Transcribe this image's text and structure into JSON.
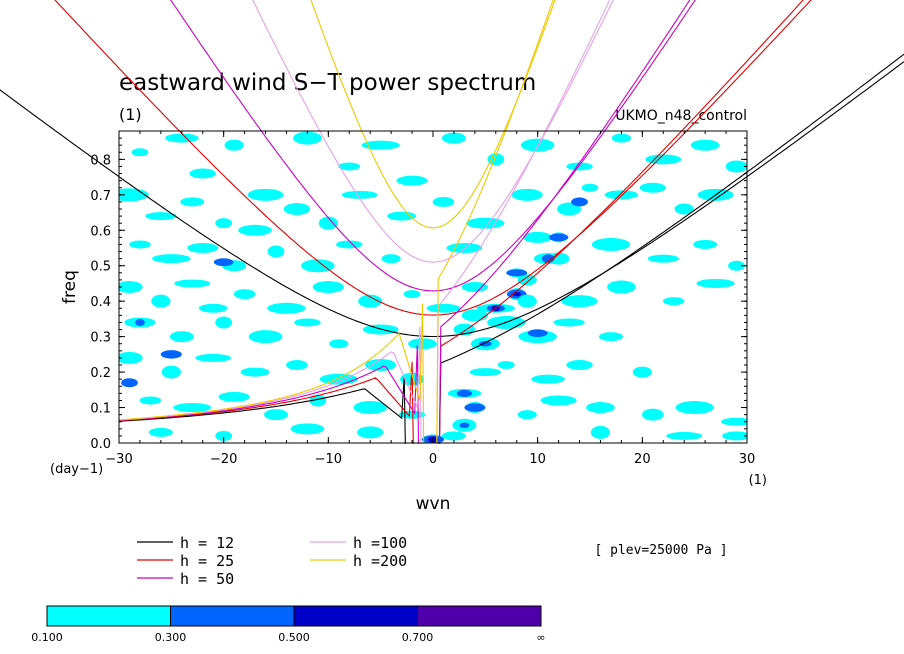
{
  "chart_data": {
    "type": "contour",
    "title": "eastward wind S−T power spectrum",
    "panel_label": "(1)",
    "model_label": "UKMO_n48_control",
    "xlabel": "wvn",
    "ylabel": "freq",
    "x_unit": "(1)",
    "y_unit": "(day−1)",
    "plev_label": "[ plev=25000 Pa ]",
    "xlim": [
      -30,
      30
    ],
    "ylim": [
      0,
      0.88
    ],
    "x_ticks": [
      -30,
      -20,
      -10,
      0,
      10,
      20,
      30
    ],
    "y_ticks": [
      0.0,
      0.1,
      0.2,
      0.3,
      0.4,
      0.5,
      0.6,
      0.7,
      0.8
    ],
    "x_tick_labels": [
      "−30",
      "−20",
      "−10",
      "0",
      "10",
      "20",
      "30"
    ],
    "y_tick_labels": [
      "0.0",
      "0.1",
      "0.2",
      "0.3",
      "0.4",
      "0.5",
      "0.6",
      "0.7",
      "0.8"
    ],
    "grid": false,
    "curves": [
      {
        "name": "h = 12",
        "h": 12,
        "color": "#000000"
      },
      {
        "name": "h = 25",
        "h": 25,
        "color": "#e00000"
      },
      {
        "name": "h = 50",
        "h": 50,
        "color": "#c800c8"
      },
      {
        "name": "h =100",
        "h": 100,
        "color": "#e6a0e6"
      },
      {
        "name": "h =200",
        "h": 200,
        "color": "#f0c800"
      }
    ],
    "levels": [
      "0.100",
      "0.300",
      "0.500",
      "0.700",
      "∞"
    ],
    "level_colors": [
      "#00ffff",
      "#0064ff",
      "#0000c8",
      "#5000aa"
    ],
    "blobs": [
      {
        "x": -28,
        "y": 0.82,
        "l": 0
      },
      {
        "x": -24,
        "y": 0.86,
        "l": 0
      },
      {
        "x": -22,
        "y": 0.76,
        "l": 0
      },
      {
        "x": -19,
        "y": 0.84,
        "l": 0
      },
      {
        "x": -16,
        "y": 0.7,
        "l": 0
      },
      {
        "x": -12,
        "y": 0.86,
        "l": 0
      },
      {
        "x": -8,
        "y": 0.78,
        "l": 0
      },
      {
        "x": -5,
        "y": 0.84,
        "l": 0
      },
      {
        "x": -2,
        "y": 0.74,
        "l": 0
      },
      {
        "x": 2,
        "y": 0.86,
        "l": 0
      },
      {
        "x": 6,
        "y": 0.8,
        "l": 0
      },
      {
        "x": 10,
        "y": 0.84,
        "l": 0
      },
      {
        "x": 14,
        "y": 0.78,
        "l": 0
      },
      {
        "x": 18,
        "y": 0.86,
        "l": 0
      },
      {
        "x": 22,
        "y": 0.8,
        "l": 0
      },
      {
        "x": 26,
        "y": 0.84,
        "l": 0
      },
      {
        "x": 29,
        "y": 0.78,
        "l": 0
      },
      {
        "x": -29,
        "y": 0.7,
        "l": 0
      },
      {
        "x": -26,
        "y": 0.64,
        "l": 0
      },
      {
        "x": -23,
        "y": 0.68,
        "l": 0
      },
      {
        "x": -20,
        "y": 0.62,
        "l": 0
      },
      {
        "x": -17,
        "y": 0.6,
        "l": 0
      },
      {
        "x": -13,
        "y": 0.66,
        "l": 0
      },
      {
        "x": -10,
        "y": 0.62,
        "l": 0
      },
      {
        "x": -7,
        "y": 0.7,
        "l": 0
      },
      {
        "x": -3,
        "y": 0.64,
        "l": 0
      },
      {
        "x": 1,
        "y": 0.68,
        "l": 0
      },
      {
        "x": 5,
        "y": 0.62,
        "l": 0
      },
      {
        "x": 9,
        "y": 0.7,
        "l": 0
      },
      {
        "x": 13,
        "y": 0.66,
        "l": 0
      },
      {
        "x": 15,
        "y": 0.72,
        "l": 0
      },
      {
        "x": 18,
        "y": 0.7,
        "l": 0
      },
      {
        "x": 21,
        "y": 0.72,
        "l": 0
      },
      {
        "x": 24,
        "y": 0.66,
        "l": 0
      },
      {
        "x": 27,
        "y": 0.7,
        "l": 0
      },
      {
        "x": 14,
        "y": 0.68,
        "l": 1
      },
      {
        "x": -28,
        "y": 0.56,
        "l": 0
      },
      {
        "x": -25,
        "y": 0.52,
        "l": 0
      },
      {
        "x": -22,
        "y": 0.55,
        "l": 0
      },
      {
        "x": -19,
        "y": 0.5,
        "l": 0
      },
      {
        "x": -15,
        "y": 0.54,
        "l": 0
      },
      {
        "x": -11,
        "y": 0.5,
        "l": 0
      },
      {
        "x": -8,
        "y": 0.56,
        "l": 0
      },
      {
        "x": -4,
        "y": 0.52,
        "l": 0
      },
      {
        "x": 3,
        "y": 0.55,
        "l": 0
      },
      {
        "x": 10,
        "y": 0.58,
        "l": 0
      },
      {
        "x": 12,
        "y": 0.52,
        "l": 0
      },
      {
        "x": 17,
        "y": 0.56,
        "l": 0
      },
      {
        "x": 22,
        "y": 0.52,
        "l": 0
      },
      {
        "x": 26,
        "y": 0.56,
        "l": 0
      },
      {
        "x": 29,
        "y": 0.5,
        "l": 0
      },
      {
        "x": -20,
        "y": 0.51,
        "l": 1
      },
      {
        "x": -29,
        "y": 0.44,
        "l": 0
      },
      {
        "x": -26,
        "y": 0.4,
        "l": 0
      },
      {
        "x": -23,
        "y": 0.45,
        "l": 0
      },
      {
        "x": -21,
        "y": 0.38,
        "l": 0
      },
      {
        "x": -18,
        "y": 0.42,
        "l": 0
      },
      {
        "x": -14,
        "y": 0.38,
        "l": 0
      },
      {
        "x": -10,
        "y": 0.44,
        "l": 0
      },
      {
        "x": -6,
        "y": 0.4,
        "l": 0
      },
      {
        "x": -2,
        "y": 0.42,
        "l": 0
      },
      {
        "x": 1,
        "y": 0.38,
        "l": 0
      },
      {
        "x": 4,
        "y": 0.44,
        "l": 0
      },
      {
        "x": 9,
        "y": 0.46,
        "l": 0
      },
      {
        "x": 14,
        "y": 0.4,
        "l": 0
      },
      {
        "x": 18,
        "y": 0.44,
        "l": 0
      },
      {
        "x": 23,
        "y": 0.4,
        "l": 0
      },
      {
        "x": 27,
        "y": 0.45,
        "l": 0
      },
      {
        "x": -28,
        "y": 0.34,
        "l": 0
      },
      {
        "x": -24,
        "y": 0.3,
        "l": 0
      },
      {
        "x": -20,
        "y": 0.34,
        "l": 0
      },
      {
        "x": -16,
        "y": 0.3,
        "l": 0
      },
      {
        "x": -12,
        "y": 0.34,
        "l": 0
      },
      {
        "x": -9,
        "y": 0.28,
        "l": 0
      },
      {
        "x": -5,
        "y": 0.32,
        "l": 0
      },
      {
        "x": -1,
        "y": 0.28,
        "l": 0
      },
      {
        "x": 3,
        "y": 0.32,
        "l": 0
      },
      {
        "x": 10,
        "y": 0.3,
        "l": 0
      },
      {
        "x": 13,
        "y": 0.34,
        "l": 0
      },
      {
        "x": 17,
        "y": 0.3,
        "l": 0
      },
      {
        "x": -28,
        "y": 0.34,
        "l": 1
      },
      {
        "x": 10,
        "y": 0.31,
        "l": 1
      },
      {
        "x": -29,
        "y": 0.24,
        "l": 0
      },
      {
        "x": -25,
        "y": 0.2,
        "l": 0
      },
      {
        "x": -21,
        "y": 0.24,
        "l": 0
      },
      {
        "x": -17,
        "y": 0.2,
        "l": 0
      },
      {
        "x": -13,
        "y": 0.22,
        "l": 0
      },
      {
        "x": -9,
        "y": 0.18,
        "l": 0
      },
      {
        "x": -5,
        "y": 0.22,
        "l": 0
      },
      {
        "x": -2,
        "y": 0.18,
        "l": 0
      },
      {
        "x": 7,
        "y": 0.22,
        "l": 0
      },
      {
        "x": 11,
        "y": 0.18,
        "l": 0
      },
      {
        "x": 14,
        "y": 0.22,
        "l": 0
      },
      {
        "x": 20,
        "y": 0.2,
        "l": 0
      },
      {
        "x": -25,
        "y": 0.25,
        "l": 1
      },
      {
        "x": -29,
        "y": 0.17,
        "l": 1
      },
      {
        "x": -27,
        "y": 0.12,
        "l": 0
      },
      {
        "x": -23,
        "y": 0.1,
        "l": 0
      },
      {
        "x": -19,
        "y": 0.13,
        "l": 0
      },
      {
        "x": -15,
        "y": 0.08,
        "l": 0
      },
      {
        "x": -11,
        "y": 0.12,
        "l": 0
      },
      {
        "x": -6,
        "y": 0.1,
        "l": 0
      },
      {
        "x": -2,
        "y": 0.08,
        "l": 0
      },
      {
        "x": 9,
        "y": 0.08,
        "l": 0
      },
      {
        "x": 12,
        "y": 0.12,
        "l": 0
      },
      {
        "x": 16,
        "y": 0.1,
        "l": 0
      },
      {
        "x": 21,
        "y": 0.08,
        "l": 0
      },
      {
        "x": 25,
        "y": 0.1,
        "l": 0
      },
      {
        "x": 29,
        "y": 0.06,
        "l": 0
      },
      {
        "x": -26,
        "y": 0.03,
        "l": 0
      },
      {
        "x": -20,
        "y": 0.02,
        "l": 0
      },
      {
        "x": -12,
        "y": 0.04,
        "l": 0
      },
      {
        "x": -6,
        "y": 0.03,
        "l": 0
      },
      {
        "x": 16,
        "y": 0.03,
        "l": 0
      },
      {
        "x": 24,
        "y": 0.02,
        "l": 0
      },
      {
        "x": 29,
        "y": 0.02,
        "l": 0
      },
      {
        "x": 0,
        "y": 0.01,
        "l": 0
      },
      {
        "x": 0,
        "y": 0.01,
        "l": 1
      },
      {
        "x": 0,
        "y": 0.01,
        "l": 2
      },
      {
        "x": 3,
        "y": 0.05,
        "l": 0
      },
      {
        "x": 3,
        "y": 0.05,
        "l": 1
      },
      {
        "x": 3,
        "y": 0.14,
        "l": 0
      },
      {
        "x": 3,
        "y": 0.14,
        "l": 1
      },
      {
        "x": 4,
        "y": 0.1,
        "l": 0
      },
      {
        "x": 4,
        "y": 0.1,
        "l": 1
      },
      {
        "x": 5,
        "y": 0.28,
        "l": 0
      },
      {
        "x": 5,
        "y": 0.28,
        "l": 1
      },
      {
        "x": 6,
        "y": 0.38,
        "l": 0
      },
      {
        "x": 6,
        "y": 0.38,
        "l": 1
      },
      {
        "x": 6,
        "y": 0.38,
        "l": 2
      },
      {
        "x": 8,
        "y": 0.42,
        "l": 0
      },
      {
        "x": 8,
        "y": 0.42,
        "l": 1
      },
      {
        "x": 8,
        "y": 0.42,
        "l": 2
      },
      {
        "x": 8,
        "y": 0.48,
        "l": 0
      },
      {
        "x": 8,
        "y": 0.48,
        "l": 1
      },
      {
        "x": 11,
        "y": 0.52,
        "l": 0
      },
      {
        "x": 11,
        "y": 0.52,
        "l": 1
      },
      {
        "x": 7,
        "y": 0.34,
        "l": 0
      },
      {
        "x": 5,
        "y": 0.2,
        "l": 0
      },
      {
        "x": 2,
        "y": 0.02,
        "l": 0
      },
      {
        "x": 12,
        "y": 0.58,
        "l": 0
      },
      {
        "x": 12,
        "y": 0.58,
        "l": 1
      },
      {
        "x": 4,
        "y": 0.36,
        "l": 0
      },
      {
        "x": 9,
        "y": 0.4,
        "l": 0
      }
    ]
  }
}
